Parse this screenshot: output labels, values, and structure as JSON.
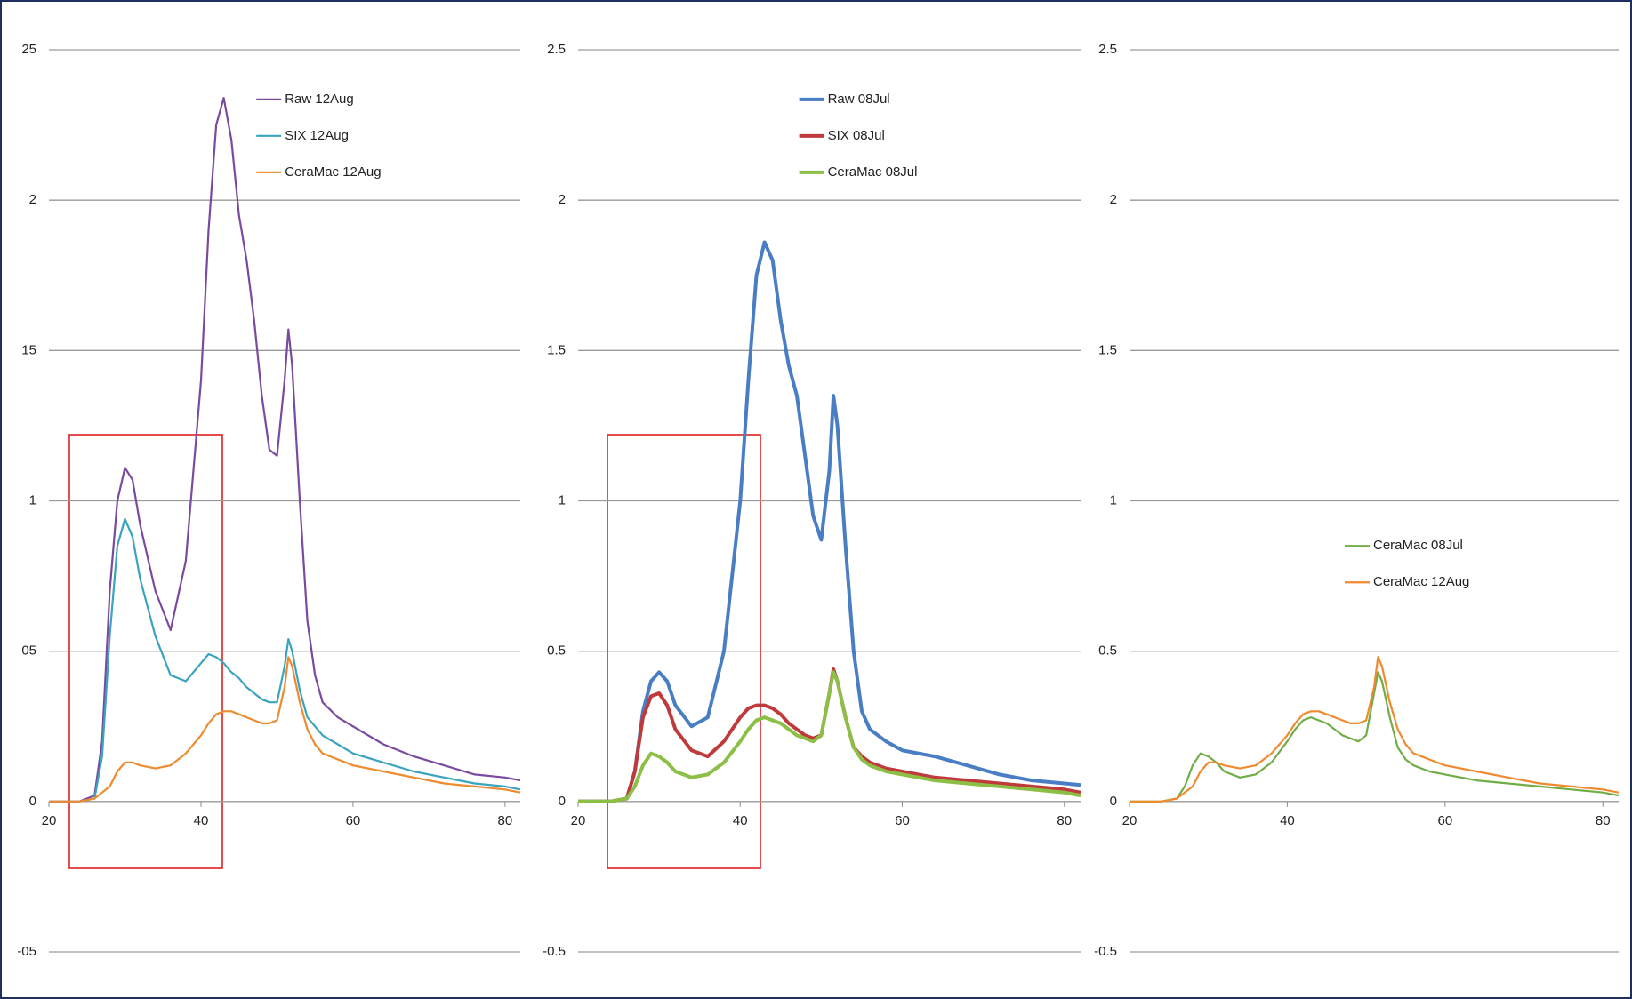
{
  "chart_data": [
    {
      "type": "line",
      "x": [
        20,
        22,
        24,
        26,
        27,
        28,
        29,
        30,
        31,
        32,
        34,
        36,
        38,
        40,
        41,
        42,
        43,
        44,
        45,
        46,
        47,
        48,
        49,
        50,
        51,
        51.5,
        52,
        53,
        54,
        55,
        56,
        58,
        60,
        64,
        68,
        72,
        76,
        80,
        82
      ],
      "series": [
        {
          "name": "Raw 12Aug",
          "color": "#7a4a9e",
          "values": [
            0,
            0,
            0,
            0.02,
            0.2,
            0.7,
            1.0,
            1.11,
            1.07,
            0.92,
            0.7,
            0.57,
            0.8,
            1.4,
            1.9,
            2.25,
            2.34,
            2.2,
            1.95,
            1.8,
            1.6,
            1.35,
            1.17,
            1.15,
            1.4,
            1.57,
            1.45,
            1.0,
            0.6,
            0.42,
            0.33,
            0.28,
            0.25,
            0.19,
            0.15,
            0.12,
            0.09,
            0.08,
            0.07
          ]
        },
        {
          "name": "SIX 12Aug",
          "color": "#3aa3bf",
          "values": [
            0,
            0,
            0,
            0.01,
            0.15,
            0.55,
            0.85,
            0.94,
            0.88,
            0.74,
            0.55,
            0.42,
            0.4,
            0.46,
            0.49,
            0.48,
            0.46,
            0.43,
            0.41,
            0.38,
            0.36,
            0.34,
            0.33,
            0.33,
            0.45,
            0.54,
            0.5,
            0.37,
            0.28,
            0.25,
            0.22,
            0.19,
            0.16,
            0.13,
            0.1,
            0.08,
            0.06,
            0.05,
            0.04
          ]
        },
        {
          "name": "CeraMac 12Aug",
          "color": "#ef8a2e",
          "values": [
            0,
            0,
            0,
            0.01,
            0.03,
            0.05,
            0.1,
            0.13,
            0.13,
            0.12,
            0.11,
            0.12,
            0.16,
            0.22,
            0.26,
            0.29,
            0.3,
            0.3,
            0.29,
            0.28,
            0.27,
            0.26,
            0.26,
            0.27,
            0.38,
            0.48,
            0.45,
            0.33,
            0.24,
            0.19,
            0.16,
            0.14,
            0.12,
            0.1,
            0.08,
            0.06,
            0.05,
            0.04,
            0.03
          ]
        }
      ],
      "xlim": [
        20,
        82
      ],
      "xticks": [
        20,
        40,
        60,
        80
      ],
      "ylim": [
        -0.5,
        2.5
      ],
      "yticks": [
        {
          "value": -0.5,
          "label": "-05"
        },
        0,
        {
          "value": 0.5,
          "label": "05"
        },
        1,
        {
          "value": 1.5,
          "label": "15"
        },
        2,
        {
          "value": 2.5,
          "label": "25"
        }
      ],
      "grid": true,
      "legend": "upper center"
    },
    {
      "type": "line",
      "x": [
        20,
        22,
        24,
        26,
        27,
        28,
        29,
        30,
        31,
        32,
        34,
        36,
        38,
        40,
        41,
        42,
        43,
        44,
        45,
        46,
        47,
        48,
        49,
        50,
        51,
        51.5,
        52,
        53,
        54,
        55,
        56,
        58,
        60,
        64,
        68,
        72,
        76,
        80,
        82
      ],
      "series": [
        {
          "name": "Raw 08Jul",
          "color": "#4a7ec4",
          "values": [
            0,
            0,
            0,
            0.01,
            0.1,
            0.3,
            0.4,
            0.43,
            0.4,
            0.32,
            0.25,
            0.28,
            0.5,
            1.0,
            1.4,
            1.75,
            1.86,
            1.8,
            1.6,
            1.45,
            1.35,
            1.15,
            0.95,
            0.87,
            1.1,
            1.35,
            1.25,
            0.85,
            0.5,
            0.3,
            0.24,
            0.2,
            0.17,
            0.15,
            0.12,
            0.09,
            0.07,
            0.06,
            0.055
          ]
        },
        {
          "name": "SIX 08Jul",
          "color": "#c0393b",
          "values": [
            0,
            0,
            0,
            0.01,
            0.1,
            0.28,
            0.35,
            0.36,
            0.32,
            0.24,
            0.17,
            0.15,
            0.2,
            0.28,
            0.31,
            0.32,
            0.32,
            0.31,
            0.29,
            0.26,
            0.24,
            0.22,
            0.21,
            0.22,
            0.36,
            0.44,
            0.4,
            0.28,
            0.18,
            0.15,
            0.13,
            0.11,
            0.1,
            0.08,
            0.07,
            0.06,
            0.05,
            0.04,
            0.03
          ]
        },
        {
          "name": "CeraMac 08Jul",
          "color": "#8cbf46",
          "values": [
            0,
            0,
            0,
            0.01,
            0.05,
            0.12,
            0.16,
            0.15,
            0.13,
            0.1,
            0.08,
            0.09,
            0.13,
            0.2,
            0.24,
            0.27,
            0.28,
            0.27,
            0.26,
            0.24,
            0.22,
            0.21,
            0.2,
            0.22,
            0.36,
            0.43,
            0.4,
            0.28,
            0.18,
            0.14,
            0.12,
            0.1,
            0.09,
            0.07,
            0.06,
            0.05,
            0.04,
            0.03,
            0.02
          ]
        }
      ],
      "xlim": [
        20,
        82
      ],
      "xticks": [
        20,
        40,
        60,
        80
      ],
      "ylim": [
        -0.5,
        2.5
      ],
      "yticks": [
        -0.5,
        0,
        0.5,
        1,
        1.5,
        2,
        2.5
      ],
      "grid": true,
      "legend": "upper center"
    },
    {
      "type": "line",
      "x": [
        20,
        22,
        24,
        26,
        27,
        28,
        29,
        30,
        31,
        32,
        34,
        36,
        38,
        40,
        41,
        42,
        43,
        44,
        45,
        46,
        47,
        48,
        49,
        50,
        51,
        51.5,
        52,
        53,
        54,
        55,
        56,
        58,
        60,
        64,
        68,
        72,
        76,
        80,
        82
      ],
      "series": [
        {
          "name": "CeraMac 08Jul",
          "color": "#70ad47",
          "values": [
            0,
            0,
            0,
            0.01,
            0.05,
            0.12,
            0.16,
            0.15,
            0.13,
            0.1,
            0.08,
            0.09,
            0.13,
            0.2,
            0.24,
            0.27,
            0.28,
            0.27,
            0.26,
            0.24,
            0.22,
            0.21,
            0.2,
            0.22,
            0.36,
            0.43,
            0.4,
            0.28,
            0.18,
            0.14,
            0.12,
            0.1,
            0.09,
            0.07,
            0.06,
            0.05,
            0.04,
            0.03,
            0.02
          ]
        },
        {
          "name": "CeraMac 12Aug",
          "color": "#ef8a2e",
          "values": [
            0,
            0,
            0,
            0.01,
            0.03,
            0.05,
            0.1,
            0.13,
            0.13,
            0.12,
            0.11,
            0.12,
            0.16,
            0.22,
            0.26,
            0.29,
            0.3,
            0.3,
            0.29,
            0.28,
            0.27,
            0.26,
            0.26,
            0.27,
            0.38,
            0.48,
            0.45,
            0.33,
            0.24,
            0.19,
            0.16,
            0.14,
            0.12,
            0.1,
            0.08,
            0.06,
            0.05,
            0.04,
            0.03
          ]
        }
      ],
      "xlim": [
        20,
        82
      ],
      "xticks": [
        20,
        40,
        60,
        80
      ],
      "ylim": [
        -0.5,
        2.5
      ],
      "yticks": [
        -0.5,
        0,
        0.5,
        1,
        1.5,
        2,
        2.5
      ],
      "grid": true,
      "legend": "center"
    }
  ]
}
